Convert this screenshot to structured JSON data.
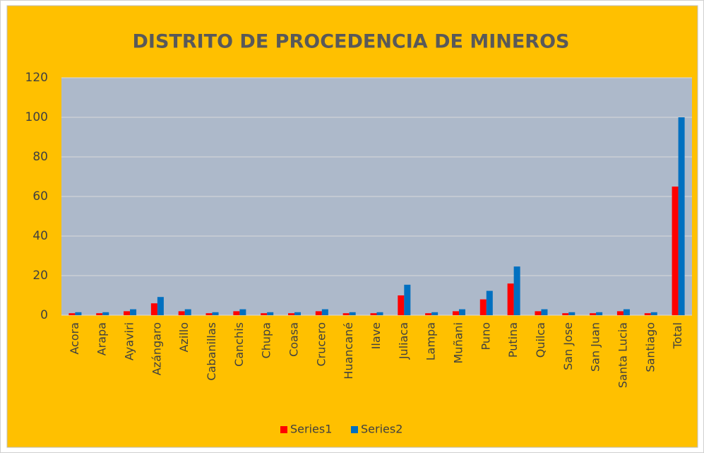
{
  "chart_data": {
    "type": "bar",
    "title": "DISTRITO DE PROCEDENCIA  DE MINEROS",
    "categories": [
      "Acora",
      "Arapa",
      "Ayaviri",
      "Azángaro",
      "Azillo",
      "Cabanillas",
      "Canchis",
      "Chupa",
      "Coasa",
      "Crucero",
      "Huancané",
      "Ilave",
      "Juliaca",
      "Lampa",
      "Muñani",
      "Puno",
      "Putina",
      "Quilca",
      "San Jose",
      "San Juan",
      "Santa Lucia",
      "Santiago",
      "Total"
    ],
    "series": [
      {
        "name": "Series1",
        "color": "#ff0000",
        "values": [
          1,
          1,
          2,
          6,
          2,
          1,
          2,
          1,
          1,
          2,
          1,
          1,
          10,
          1,
          2,
          8,
          16,
          2,
          1,
          1,
          2,
          1,
          65
        ]
      },
      {
        "name": "Series2",
        "color": "#0070c0",
        "values": [
          1.5,
          1.5,
          3,
          9.2,
          3,
          1.5,
          3,
          1.5,
          1.5,
          3,
          1.5,
          1.5,
          15.4,
          1.5,
          3,
          12.3,
          24.6,
          3,
          1.5,
          1.5,
          3,
          1.5,
          100
        ]
      }
    ],
    "ylim": [
      0,
      120
    ],
    "yticks": [
      0,
      20,
      40,
      60,
      80,
      100,
      120
    ],
    "grid": true,
    "legend": "bottom"
  }
}
